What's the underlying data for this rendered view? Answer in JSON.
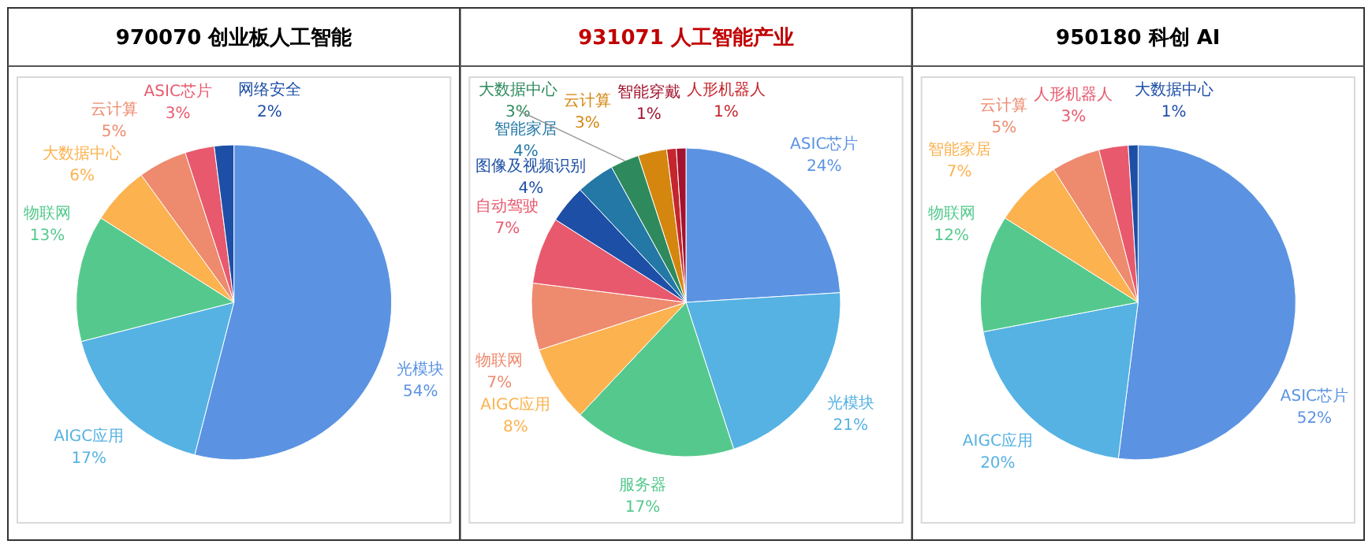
{
  "chart_data": [
    {
      "type": "pie",
      "title": "970070 创业板人工智能",
      "categories": [
        "光模块",
        "AIGC应用",
        "物联网",
        "大数据中心",
        "云计算",
        "ASIC芯片",
        "网络安全"
      ],
      "values": [
        54,
        17,
        13,
        6,
        5,
        3,
        2
      ],
      "value_labels": [
        "54%",
        "17%",
        "13%",
        "6%",
        "5%",
        "3%",
        "2%"
      ],
      "colors": [
        "#5b93e2",
        "#56b2e3",
        "#55c98d",
        "#fcb24f",
        "#ee8a6e",
        "#e8596d",
        "#1e4fa6"
      ]
    },
    {
      "type": "pie",
      "title": "931071 人工智能产业",
      "categories": [
        "ASIC芯片",
        "光模块",
        "服务器",
        "AIGC应用",
        "物联网",
        "自动驾驶",
        "图像及视频识别",
        "智能家居",
        "大数据中心",
        "云计算",
        "人形机器人",
        "智能穿戴"
      ],
      "values": [
        24,
        21,
        17,
        8,
        7,
        7,
        4,
        4,
        3,
        3,
        1,
        1
      ],
      "value_labels": [
        "24%",
        "21%",
        "17%",
        "8%",
        "7%",
        "7%",
        "4%",
        "4%",
        "3%",
        "3%",
        "1%",
        "1%"
      ],
      "colors": [
        "#5b93e2",
        "#56b2e3",
        "#55c98d",
        "#fcb24f",
        "#ee8a6e",
        "#e8596d",
        "#1e4fa6",
        "#2378a6",
        "#2e8a5c",
        "#d4860f",
        "#c4262c",
        "#a3122e"
      ]
    },
    {
      "type": "pie",
      "title": "950180 科创 AI",
      "categories": [
        "ASIC芯片",
        "AIGC应用",
        "物联网",
        "智能家居",
        "云计算",
        "人形机器人",
        "大数据中心"
      ],
      "values": [
        52,
        20,
        12,
        7,
        5,
        3,
        1
      ],
      "value_labels": [
        "52%",
        "20%",
        "12%",
        "7%",
        "5%",
        "3%",
        "1%"
      ],
      "colors": [
        "#5b93e2",
        "#56b2e3",
        "#55c98d",
        "#fcb24f",
        "#ee8a6e",
        "#e8596d",
        "#1e4fa6"
      ]
    }
  ]
}
